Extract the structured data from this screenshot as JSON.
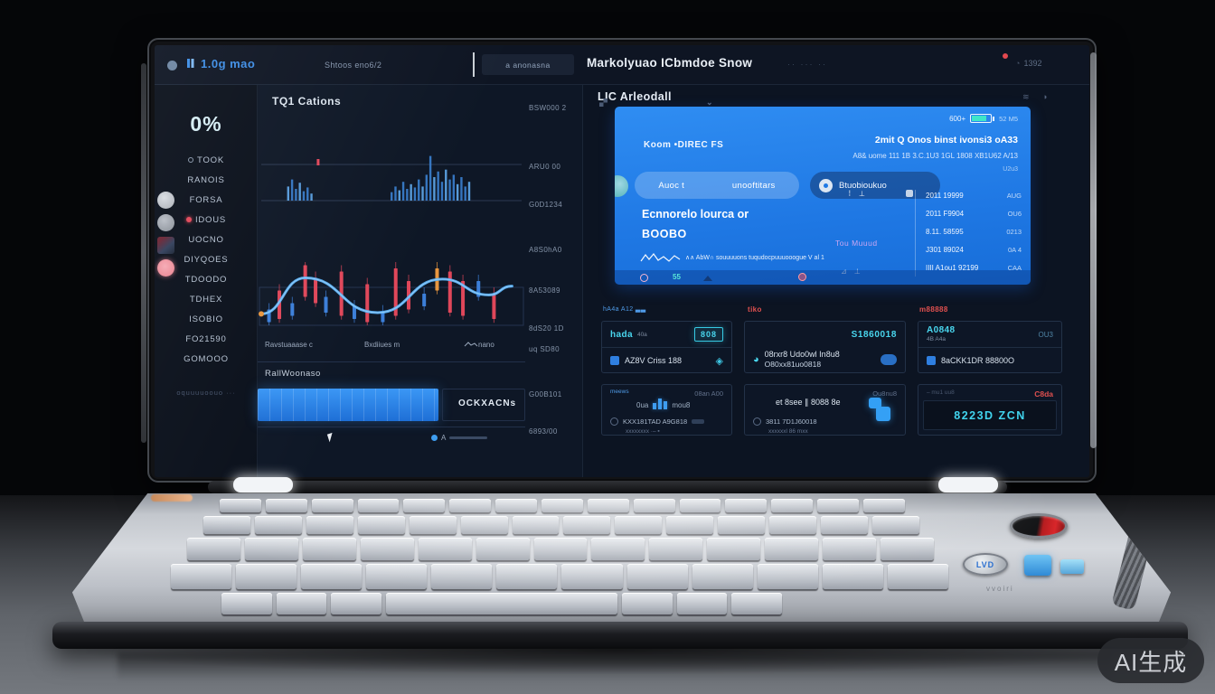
{
  "watermark": {
    "label": "AI生成"
  },
  "screen": {
    "topbar": {
      "logo": "1.0g mao",
      "menu": "Shtoos eno6/2",
      "tab": "a anonasna",
      "title": "Markolyuao ICbmdoe Snow",
      "title_trail": "·· ··· ··",
      "counter": "1392"
    },
    "sidebar": {
      "percent": "0%",
      "items": [
        {
          "label": "TOOK",
          "ring": true
        },
        {
          "label": "RANOIS"
        },
        {
          "label": "FORSA"
        },
        {
          "label": "IDOUS",
          "dot": true
        },
        {
          "label": "UOCNO"
        },
        {
          "label": "DIYQOES"
        },
        {
          "label": "TDOODO"
        },
        {
          "label": "TDHEX"
        },
        {
          "label": "ISOBIO"
        },
        {
          "label": "FO21590"
        },
        {
          "label": "GOMOOO"
        }
      ],
      "footer": "oquuuuoouo ···"
    },
    "main": {
      "title": "TQ1 Cations",
      "axis_labels": [
        "BSW000 2",
        "ARU0 00",
        "G0D1234",
        "A8S0hA0",
        "8A53089",
        "8dS20 1D",
        "uq SD80",
        "G00B101",
        "6893/00"
      ],
      "x_labels": [
        "Ravstuaaase c",
        "Bxdiiues m",
        "nano"
      ],
      "volume_title": "RallWoonaso",
      "volume_badge": "OCKXACNs",
      "legend": "A"
    },
    "right": {
      "title": "LIC Arleodall",
      "blue_card": {
        "pct": "600+",
        "batt_note": "52 M5",
        "label": "Koom •DIREC FS",
        "headline": "2mit Q Onos binst ivonsi3 oA33",
        "subline": "A8& uome 111 1B 3.C.1U3 1GL 1808 XB1U62 A/13",
        "tiny": "U2u3",
        "pill_items": [
          "Auoc t",
          "unooftitars"
        ],
        "pill_dark": "Btuobioukuo",
        "left_title1": "Ecnnorelo lourca or",
        "left_title2": "BOOBO",
        "caption": "∧∧ AbW∩ souuuuons tuqudocpuuuooogue V al 1",
        "purple": "Tou Muuud",
        "list": [
          {
            "a": "2011 19999",
            "b": "AUG"
          },
          {
            "a": "2011 F9904",
            "b": "OU6"
          },
          {
            "a": "8.11. 58595",
            "b": "0213"
          },
          {
            "a": "J301 89024",
            "b": "0A 4"
          },
          {
            "a": "IIII A1ou1 92199",
            "b": "CAA"
          }
        ],
        "footer_num": "55"
      },
      "cards": [
        {
          "pre": "hA4a A12 ▃▃",
          "title": "hada",
          "title_sub": "40a",
          "badge": "808",
          "row": "AZ8V Criss 188"
        },
        {
          "pre": "tiko",
          "badge": "S1860018",
          "line1": "08rxr8 Udo0wl In8u8",
          "line2": "O80xx81uo0818"
        },
        {
          "pre": "m88888",
          "title": "A0848",
          "title_sub": "4B A4a",
          "corner": "OU3",
          "row": "8aCKK1DR 88800O"
        },
        {
          "pre": "meews",
          "corner": "08an A00",
          "mid_a": "0ua",
          "mid_b": "mou8",
          "row": "KXX181TAD A9G818",
          "row_sub": "xxxxxxxx ·– ▪"
        },
        {
          "corner": "Ou8nu8",
          "line1": "et 8see ∥ 8088 8e",
          "row": "3811 7D1J60018",
          "row_sub": "xxxxxxl 86 mxx"
        },
        {
          "pre": "– mu1 uu8",
          "corner": "C8da",
          "box": "8223D ZCN"
        }
      ]
    }
  },
  "deck": {
    "brand": "LVD",
    "engraving": "vvoiri"
  },
  "chart_data": {
    "type": "dashboard",
    "panels": [
      {
        "id": "activity-bars",
        "type": "bar",
        "marker": 0.22,
        "bars": [
          [
            0.1,
            0.3
          ],
          [
            0.115,
            0.45
          ],
          [
            0.13,
            0.25
          ],
          [
            0.145,
            0.38
          ],
          [
            0.16,
            0.2
          ],
          [
            0.175,
            0.28
          ],
          [
            0.19,
            0.15
          ],
          [
            0.5,
            0.18
          ],
          [
            0.515,
            0.3
          ],
          [
            0.53,
            0.22
          ],
          [
            0.545,
            0.4
          ],
          [
            0.56,
            0.25
          ],
          [
            0.575,
            0.35
          ],
          [
            0.59,
            0.28
          ],
          [
            0.605,
            0.45
          ],
          [
            0.62,
            0.3
          ],
          [
            0.635,
            0.55
          ],
          [
            0.65,
            0.95
          ],
          [
            0.665,
            0.5
          ],
          [
            0.68,
            0.62
          ],
          [
            0.695,
            0.4
          ],
          [
            0.71,
            0.66
          ],
          [
            0.725,
            0.45
          ],
          [
            0.74,
            0.55
          ],
          [
            0.755,
            0.35
          ],
          [
            0.77,
            0.5
          ],
          [
            0.785,
            0.3
          ],
          [
            0.8,
            0.4
          ]
        ]
      },
      {
        "id": "price-candles",
        "type": "candlestick",
        "candles": [
          [
            0.03,
            "b",
            0.05,
            0.25
          ],
          [
            0.07,
            "r",
            0.1,
            0.55
          ],
          [
            0.12,
            "b",
            0.15,
            0.35
          ],
          [
            0.17,
            "r",
            0.45,
            0.95
          ],
          [
            0.21,
            "r",
            0.35,
            0.75
          ],
          [
            0.25,
            "b",
            0.2,
            0.45
          ],
          [
            0.31,
            "r",
            0.15,
            0.85
          ],
          [
            0.36,
            "b",
            0.1,
            0.3
          ],
          [
            0.41,
            "r",
            0.05,
            0.65
          ],
          [
            0.47,
            "b",
            0.05,
            0.22
          ],
          [
            0.52,
            "r",
            0.15,
            0.9
          ],
          [
            0.57,
            "r",
            0.25,
            0.7
          ],
          [
            0.63,
            "b",
            0.3,
            0.5
          ],
          [
            0.68,
            "o",
            0.55,
            0.9
          ],
          [
            0.73,
            "r",
            0.2,
            0.85
          ],
          [
            0.78,
            "r",
            0.15,
            0.7
          ],
          [
            0.84,
            "b",
            0.45,
            0.7
          ],
          [
            0.9,
            "r",
            0.1,
            0.5
          ]
        ],
        "line": [
          [
            0.0,
            0.18
          ],
          [
            0.17,
            0.75
          ],
          [
            0.45,
            0.2
          ],
          [
            0.7,
            0.73
          ],
          [
            0.88,
            0.48
          ],
          [
            0.97,
            0.62
          ]
        ]
      },
      {
        "id": "volume-area",
        "type": "area",
        "fill_fraction": 0.68
      }
    ]
  }
}
